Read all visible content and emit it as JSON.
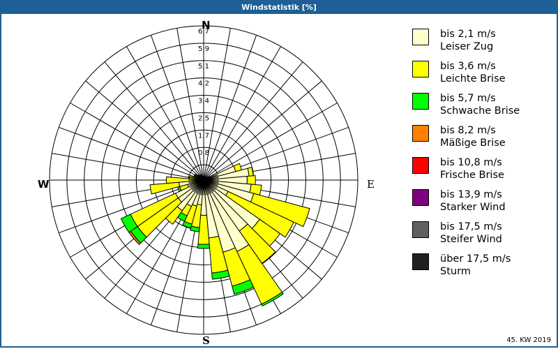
{
  "window": {
    "title": "Windstatistik [%]"
  },
  "footer": {
    "week_label": "45. KW 2019"
  },
  "compass": {
    "n": "N",
    "e": "E",
    "s": "S",
    "w": "W"
  },
  "colors": {
    "frame": "#1d5f96",
    "grid": "#000000"
  },
  "legend": [
    {
      "range": "bis 2,1 m/s",
      "name": "Leiser Zug",
      "color": "#ffffcc"
    },
    {
      "range": "bis 3,6 m/s",
      "name": "Leichte Brise",
      "color": "#ffff00"
    },
    {
      "range": "bis 5,7 m/s",
      "name": "Schwache Brise",
      "color": "#00ff00"
    },
    {
      "range": "bis 8,2 m/s",
      "name": "Mäßige Brise",
      "color": "#ff8000"
    },
    {
      "range": "bis 10,8 m/s",
      "name": "Frische Brise",
      "color": "#ff0000"
    },
    {
      "range": "bis 13,9 m/s",
      "name": "Starker Wind",
      "color": "#800080"
    },
    {
      "range": "bis 17,5 m/s",
      "name": "Steifer Wind",
      "color": "#606060"
    },
    {
      "range": "über 17,5 m/s",
      "name": "Sturm",
      "color": "#202020"
    }
  ],
  "chart_data": {
    "type": "windrose",
    "title": "Windstatistik [%]",
    "subtitle": "45. KW 2019",
    "unit": "%",
    "ring_labels": [
      "0,8",
      "1,7",
      "2,5",
      "3,4",
      "4,2",
      "5,1",
      "5,9",
      "6,7"
    ],
    "rmax": 6.7,
    "sector_width_deg": 10,
    "series_names": [
      "bis 2,1 m/s",
      "bis 3,6 m/s",
      "bis 5,7 m/s",
      "bis 8,2 m/s"
    ],
    "sectors": [
      {
        "dir": 0,
        "values": [
          0.0,
          0.0,
          0.0,
          0.0
        ]
      },
      {
        "dir": 10,
        "values": [
          0.1,
          0.0,
          0.0,
          0.0
        ]
      },
      {
        "dir": 20,
        "values": [
          0.1,
          0.0,
          0.0,
          0.0
        ]
      },
      {
        "dir": 30,
        "values": [
          0.1,
          0.0,
          0.0,
          0.0
        ]
      },
      {
        "dir": 40,
        "values": [
          0.1,
          0.0,
          0.0,
          0.0
        ]
      },
      {
        "dir": 50,
        "values": [
          0.2,
          0.0,
          0.0,
          0.0
        ]
      },
      {
        "dir": 60,
        "values": [
          0.3,
          0.0,
          0.0,
          0.0
        ]
      },
      {
        "dir": 70,
        "values": [
          1.6,
          0.3,
          0.0,
          0.0
        ]
      },
      {
        "dir": 80,
        "values": [
          2.2,
          0.2,
          0.0,
          0.0
        ]
      },
      {
        "dir": 90,
        "values": [
          2.1,
          0.4,
          0.0,
          0.0
        ]
      },
      {
        "dir": 100,
        "values": [
          2.3,
          0.5,
          0.0,
          0.0
        ]
      },
      {
        "dir": 110,
        "values": [
          2.5,
          2.8,
          0.0,
          0.0
        ]
      },
      {
        "dir": 120,
        "values": [
          1.3,
          3.5,
          0.0,
          0.0
        ]
      },
      {
        "dir": 130,
        "values": [
          3.3,
          1.2,
          0.0,
          0.0
        ]
      },
      {
        "dir": 140,
        "values": [
          3.0,
          1.9,
          0.0,
          0.0
        ]
      },
      {
        "dir": 150,
        "values": [
          3.8,
          2.8,
          0.1,
          0.0
        ]
      },
      {
        "dir": 160,
        "values": [
          3.6,
          1.7,
          0.4,
          0.0
        ]
      },
      {
        "dir": 170,
        "values": [
          2.8,
          1.7,
          0.3,
          0.0
        ]
      },
      {
        "dir": 180,
        "values": [
          1.7,
          1.4,
          0.2,
          0.0
        ]
      },
      {
        "dir": 190,
        "values": [
          1.2,
          1.1,
          0.2,
          0.0
        ]
      },
      {
        "dir": 200,
        "values": [
          1.3,
          0.9,
          0.2,
          0.0
        ]
      },
      {
        "dir": 210,
        "values": [
          1.4,
          0.5,
          0.3,
          0.0
        ]
      },
      {
        "dir": 220,
        "values": [
          1.8,
          0.8,
          0.0,
          0.0
        ]
      },
      {
        "dir": 230,
        "values": [
          1.5,
          2.4,
          0.4,
          0.1
        ]
      },
      {
        "dir": 240,
        "values": [
          1.5,
          2.4,
          0.5,
          0.0
        ]
      },
      {
        "dir": 250,
        "values": [
          0.8,
          0.4,
          0.1,
          0.0
        ]
      },
      {
        "dir": 260,
        "values": [
          1.2,
          1.4,
          0.0,
          0.0
        ]
      },
      {
        "dir": 270,
        "values": [
          0.4,
          1.4,
          0.0,
          0.0
        ]
      },
      {
        "dir": 280,
        "values": [
          0.3,
          0.4,
          0.0,
          0.0
        ]
      },
      {
        "dir": 290,
        "values": [
          0.2,
          0.3,
          0.0,
          0.0
        ]
      },
      {
        "dir": 300,
        "values": [
          0.2,
          0.3,
          0.0,
          0.0
        ]
      },
      {
        "dir": 310,
        "values": [
          0.1,
          0.2,
          0.05,
          0.0
        ]
      },
      {
        "dir": 320,
        "values": [
          0.1,
          0.0,
          0.0,
          0.0
        ]
      },
      {
        "dir": 330,
        "values": [
          0.2,
          0.1,
          0.0,
          0.0
        ]
      },
      {
        "dir": 340,
        "values": [
          0.1,
          0.0,
          0.0,
          0.0
        ]
      },
      {
        "dir": 350,
        "values": [
          0.0,
          0.0,
          0.0,
          0.0
        ]
      }
    ],
    "grid": true,
    "legend_position": "right"
  }
}
